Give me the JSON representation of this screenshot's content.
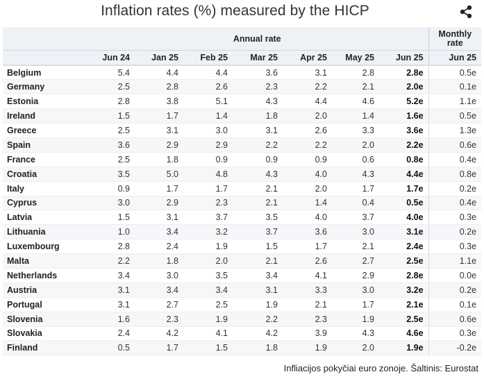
{
  "title": "Inflation rates (%) measured by the HICP",
  "source": "Infliacijos pokyčiai euro zonoje. Šaltinis: Eurostat",
  "icons": {
    "share": "share-icon"
  },
  "chart_data": {
    "type": "table",
    "title": "Inflation rates (%) measured by the HICP",
    "group_headers": {
      "annual": "Annual rate",
      "monthly_line1": "Monthly",
      "monthly_line2": "rate"
    },
    "columns": [
      "Jun 24",
      "Jan 25",
      "Feb 25",
      "Mar 25",
      "Apr 25",
      "May 25",
      "Jun 25",
      "Jun 25"
    ],
    "rows": [
      {
        "country": "Belgium",
        "values": [
          "5.4",
          "4.4",
          "4.4",
          "3.6",
          "3.1",
          "2.8",
          "2.8e",
          "0.5e"
        ]
      },
      {
        "country": "Germany",
        "values": [
          "2.5",
          "2.8",
          "2.6",
          "2.3",
          "2.2",
          "2.1",
          "2.0e",
          "0.1e"
        ]
      },
      {
        "country": "Estonia",
        "values": [
          "2.8",
          "3.8",
          "5.1",
          "4.3",
          "4.4",
          "4.6",
          "5.2e",
          "1.1e"
        ]
      },
      {
        "country": "Ireland",
        "values": [
          "1.5",
          "1.7",
          "1.4",
          "1.8",
          "2.0",
          "1.4",
          "1.6e",
          "0.5e"
        ]
      },
      {
        "country": "Greece",
        "values": [
          "2.5",
          "3.1",
          "3.0",
          "3.1",
          "2.6",
          "3.3",
          "3.6e",
          "1.3e"
        ]
      },
      {
        "country": "Spain",
        "values": [
          "3.6",
          "2.9",
          "2.9",
          "2.2",
          "2.2",
          "2.0",
          "2.2e",
          "0.6e"
        ]
      },
      {
        "country": "France",
        "values": [
          "2.5",
          "1.8",
          "0.9",
          "0.9",
          "0.9",
          "0.6",
          "0.8e",
          "0.4e"
        ]
      },
      {
        "country": "Croatia",
        "values": [
          "3.5",
          "5.0",
          "4.8",
          "4.3",
          "4.0",
          "4.3",
          "4.4e",
          "0.8e"
        ]
      },
      {
        "country": "Italy",
        "values": [
          "0.9",
          "1.7",
          "1.7",
          "2.1",
          "2.0",
          "1.7",
          "1.7e",
          "0.2e"
        ]
      },
      {
        "country": "Cyprus",
        "values": [
          "3.0",
          "2.9",
          "2.3",
          "2.1",
          "1.4",
          "0.4",
          "0.5e",
          "0.4e"
        ]
      },
      {
        "country": "Latvia",
        "values": [
          "1.5",
          "3.1",
          "3.7",
          "3.5",
          "4.0",
          "3.7",
          "4.0e",
          "0.3e"
        ]
      },
      {
        "country": "Lithuania",
        "values": [
          "1.0",
          "3.4",
          "3.2",
          "3.7",
          "3.6",
          "3.0",
          "3.1e",
          "0.2e"
        ]
      },
      {
        "country": "Luxembourg",
        "values": [
          "2.8",
          "2.4",
          "1.9",
          "1.5",
          "1.7",
          "2.1",
          "2.4e",
          "0.3e"
        ]
      },
      {
        "country": "Malta",
        "values": [
          "2.2",
          "1.8",
          "2.0",
          "2.1",
          "2.6",
          "2.7",
          "2.5e",
          "1.1e"
        ]
      },
      {
        "country": "Netherlands",
        "values": [
          "3.4",
          "3.0",
          "3.5",
          "3.4",
          "4.1",
          "2.9",
          "2.8e",
          "0.0e"
        ]
      },
      {
        "country": "Austria",
        "values": [
          "3.1",
          "3.4",
          "3.4",
          "3.1",
          "3.3",
          "3.0",
          "3.2e",
          "0.2e"
        ]
      },
      {
        "country": "Portugal",
        "values": [
          "3.1",
          "2.7",
          "2.5",
          "1.9",
          "2.1",
          "1.7",
          "2.1e",
          "0.1e"
        ]
      },
      {
        "country": "Slovenia",
        "values": [
          "1.6",
          "2.3",
          "1.9",
          "2.2",
          "2.3",
          "1.9",
          "2.5e",
          "0.6e"
        ]
      },
      {
        "country": "Slovakia",
        "values": [
          "2.4",
          "4.2",
          "4.1",
          "4.2",
          "3.9",
          "4.3",
          "4.6e",
          "0.3e"
        ]
      },
      {
        "country": "Finland",
        "values": [
          "0.5",
          "1.7",
          "1.5",
          "1.8",
          "1.9",
          "2.0",
          "1.9e",
          "-0.2e"
        ]
      }
    ]
  }
}
